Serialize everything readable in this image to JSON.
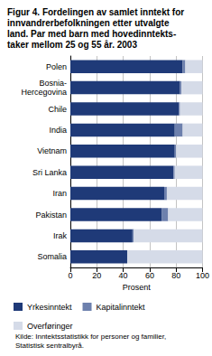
{
  "chart_data": {
    "type": "bar",
    "orientation": "horizontal",
    "stacked": true,
    "title": "Figur 4. Fordelingen av samlet inntekt for\ninnvandrerbefolkningen etter utvalgte\nland. Par med barn med hovedinntekts-\ntaker mellom 25 og 55 år. 2003",
    "source": "Kilde: Inntektsstatistikk for personer og familier,\nStatistisk sentralbyrå.",
    "x_label": "Prosent",
    "categories": [
      "Polen",
      "Bosnia-\nHercegovina",
      "Chile",
      "India",
      "Vietnam",
      "Sri Lanka",
      "Iran",
      "Pakistan",
      "Irak",
      "Somalia"
    ],
    "series": [
      {
        "name": "Yrkesinntekt",
        "color": "#1f3a78",
        "values": [
          85,
          83,
          82,
          79,
          79,
          78,
          71,
          69,
          47,
          43
        ]
      },
      {
        "name": "Kapitalinntekt",
        "color": "#6d80ad",
        "values": [
          2,
          1,
          1,
          6,
          1,
          1,
          2,
          5,
          1,
          0
        ]
      },
      {
        "name": "Overføringer",
        "color": "#d5dbe8",
        "values": [
          13,
          16,
          17,
          15,
          20,
          21,
          27,
          26,
          52,
          57
        ]
      }
    ],
    "xlim": [
      0,
      100
    ],
    "xticks": [
      0,
      20,
      40,
      60,
      80,
      100
    ],
    "grid": true,
    "legend": "bottom"
  }
}
